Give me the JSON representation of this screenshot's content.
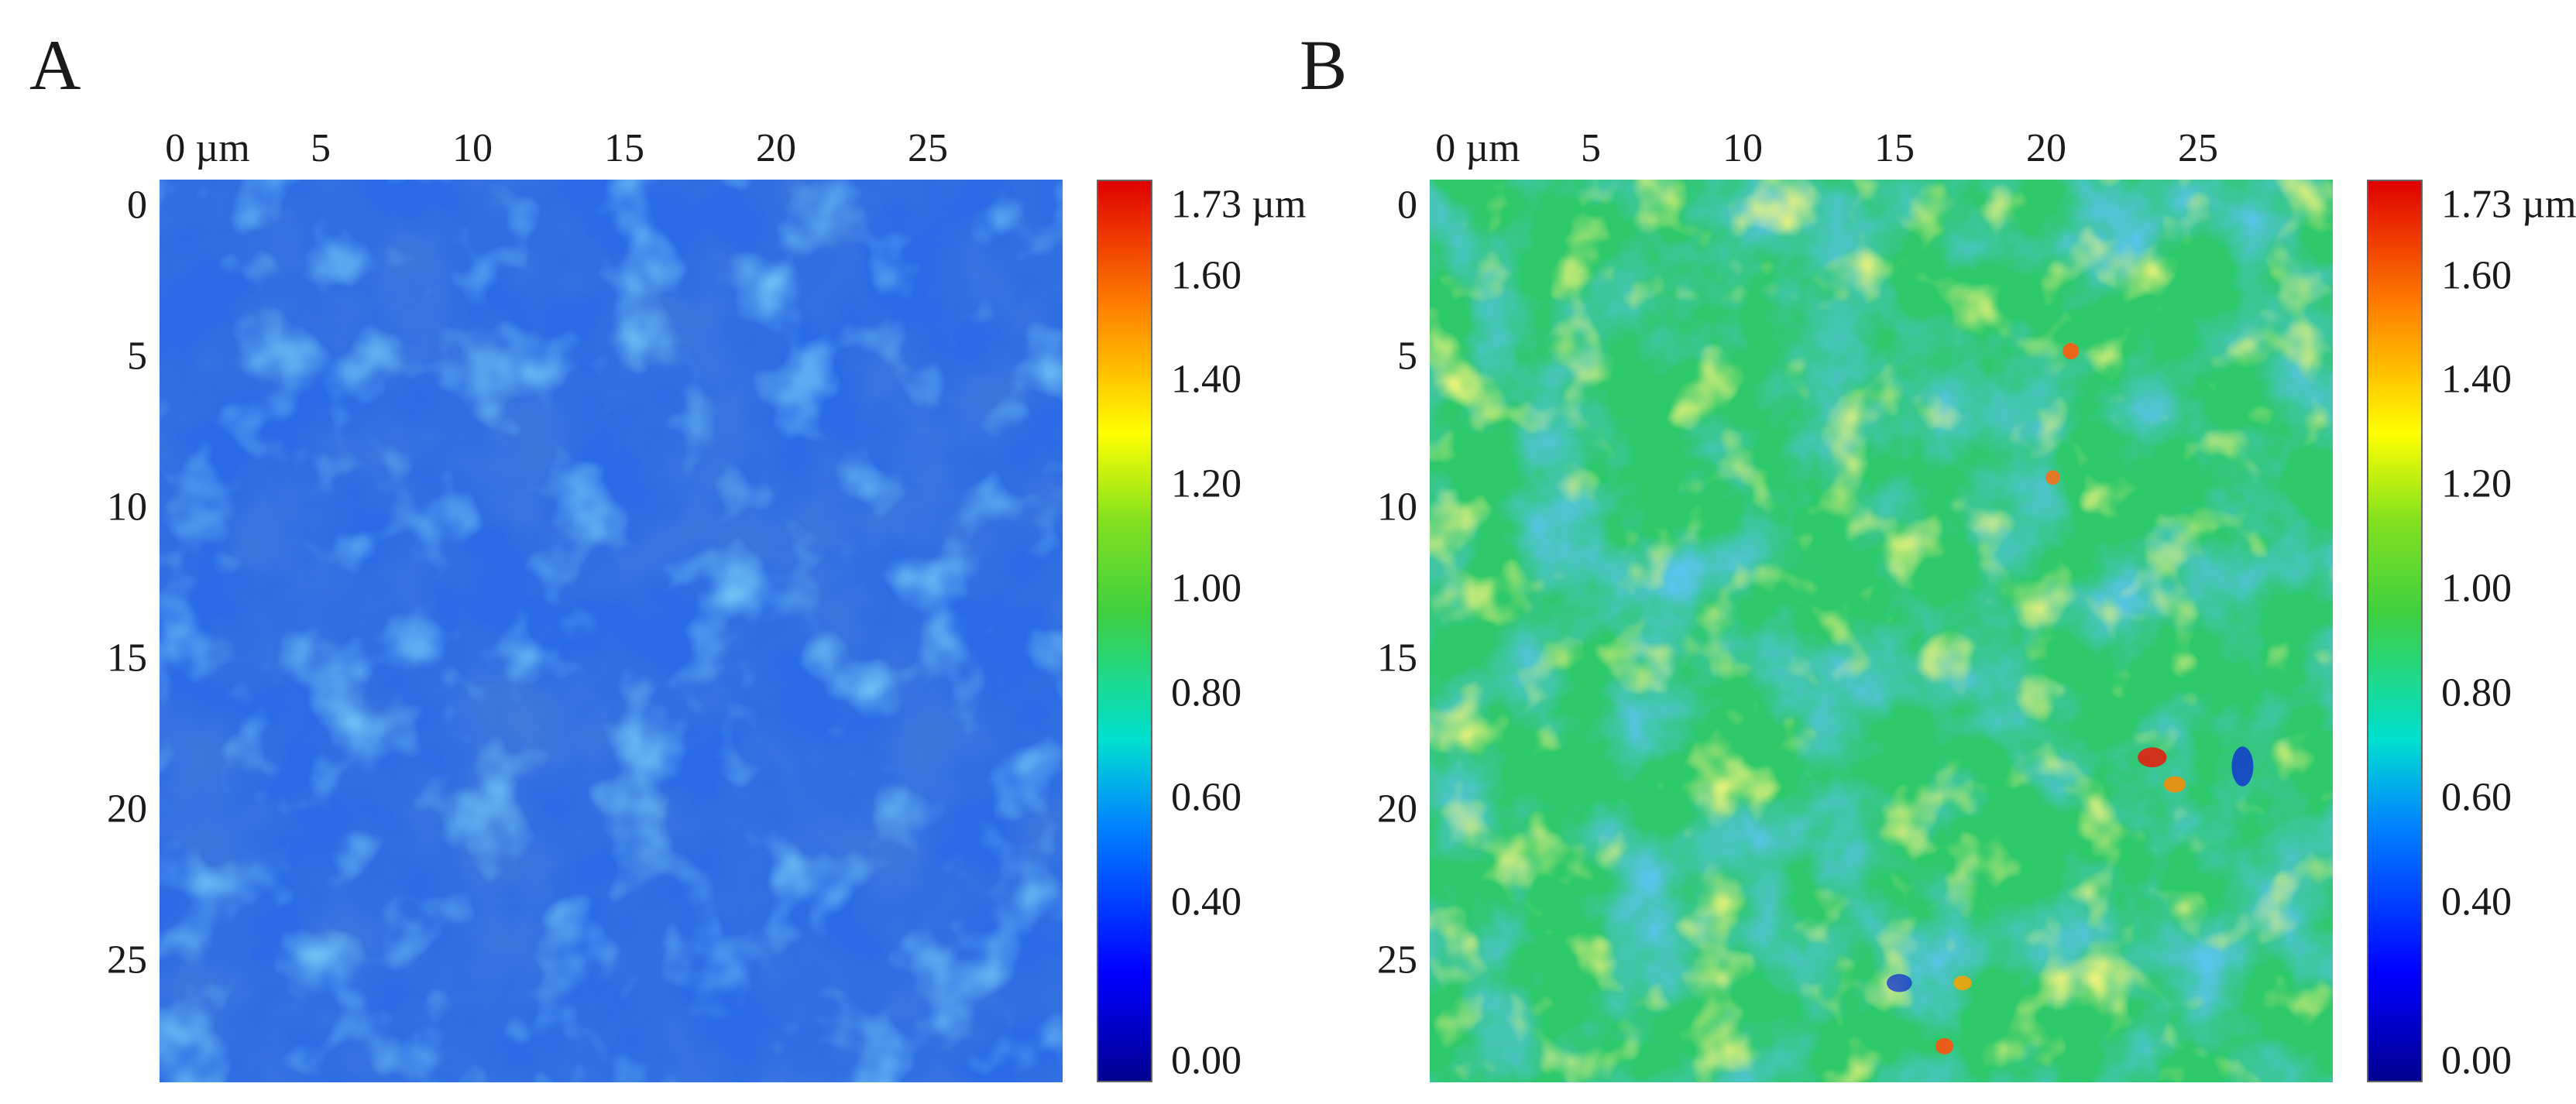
{
  "panels": [
    {
      "label": "A",
      "x_ticks": [
        "0 µm",
        "5",
        "10",
        "15",
        "20",
        "25"
      ],
      "y_ticks": [
        "0",
        "5",
        "10",
        "15",
        "20",
        "25"
      ],
      "colorbar": {
        "max_label": "1.73 µm",
        "labels": [
          "1.60",
          "1.40",
          "1.20",
          "1.00",
          "0.80",
          "0.60",
          "0.40",
          "0.00"
        ]
      },
      "map": {
        "dominant_color": "#2060e0",
        "mean_height_um": 0.35
      }
    },
    {
      "label": "B",
      "x_ticks": [
        "0 µm",
        "5",
        "10",
        "15",
        "20",
        "25"
      ],
      "y_ticks": [
        "0",
        "5",
        "10",
        "15",
        "20",
        "25"
      ],
      "colorbar": {
        "max_label": "1.73 µm",
        "labels": [
          "1.60",
          "1.40",
          "1.20",
          "1.00",
          "0.80",
          "0.60",
          "0.40",
          "0.00"
        ]
      },
      "map": {
        "dominant_color": "#20c060",
        "mean_height_um": 0.9
      }
    }
  ]
}
